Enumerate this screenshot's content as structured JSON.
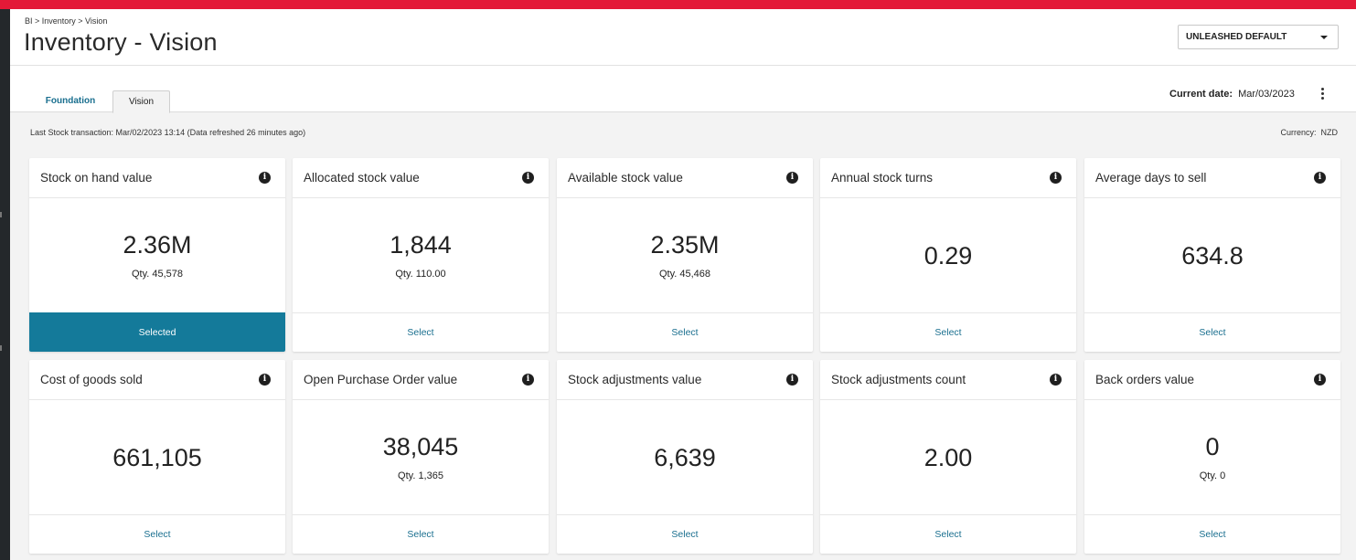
{
  "header": {
    "breadcrumb": "BI > Inventory > Vision",
    "title": "Inventory - Vision",
    "dropdown_value": "UNLEASHED DEFAULT"
  },
  "tabs": [
    {
      "label": "Foundation",
      "active": false
    },
    {
      "label": "Vision",
      "active": true
    }
  ],
  "current_date": {
    "label": "Current date:",
    "value": "Mar/03/2023"
  },
  "status_line": "Last Stock transaction: Mar/02/2023 13:14 (Data refreshed 26 minutes ago)",
  "currency": {
    "label": "Currency:",
    "value": "NZD"
  },
  "cards": [
    {
      "title": "Stock on hand value",
      "value": "2.36M",
      "qty": "Qty. 45,578",
      "action": "Selected",
      "selected": true
    },
    {
      "title": "Allocated stock value",
      "value": "1,844",
      "qty": "Qty. 110.00",
      "action": "Select",
      "selected": false
    },
    {
      "title": "Available stock value",
      "value": "2.35M",
      "qty": "Qty. 45,468",
      "action": "Select",
      "selected": false
    },
    {
      "title": "Annual stock turns",
      "value": "0.29",
      "qty": "",
      "action": "Select",
      "selected": false
    },
    {
      "title": "Average days to sell",
      "value": "634.8",
      "qty": "",
      "action": "Select",
      "selected": false
    },
    {
      "title": "Cost of goods sold",
      "value": "661,105",
      "qty": "",
      "action": "Select",
      "selected": false
    },
    {
      "title": "Open Purchase Order value",
      "value": "38,045",
      "qty": "Qty. 1,365",
      "action": "Select",
      "selected": false
    },
    {
      "title": "Stock adjustments value",
      "value": "6,639",
      "qty": "",
      "action": "Select",
      "selected": false
    },
    {
      "title": "Stock adjustments count",
      "value": "2.00",
      "qty": "",
      "action": "Select",
      "selected": false
    },
    {
      "title": "Back orders value",
      "value": "0",
      "qty": "Qty. 0",
      "action": "Select",
      "selected": false
    }
  ],
  "colors": {
    "brand": "#e31937",
    "accent": "#147a9a",
    "link": "#1a6f8f"
  }
}
